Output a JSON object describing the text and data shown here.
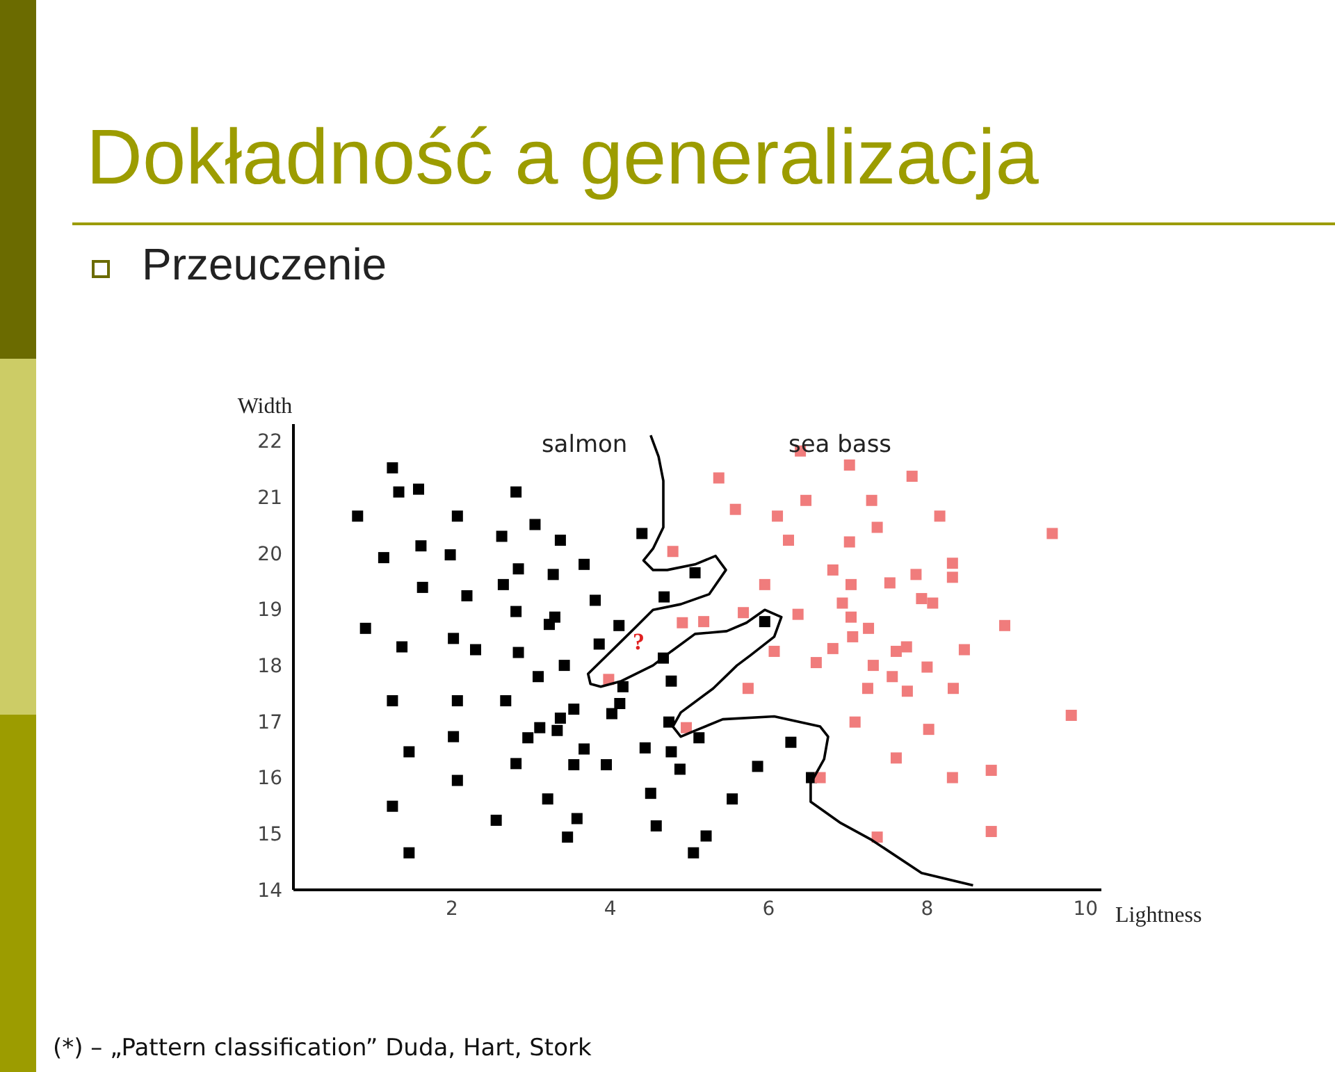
{
  "chart_data": {
    "type": "scatter",
    "title": "Dokładność a generalizacja",
    "subtitle": "Przeuczenie",
    "xlabel": "Lightness",
    "ylabel": "Width",
    "xlim": [
      0,
      10.2
    ],
    "ylim": [
      14,
      22.3
    ],
    "xticks": [
      2,
      4,
      6,
      8,
      10
    ],
    "yticks": [
      14,
      15,
      16,
      17,
      18,
      19,
      20,
      21,
      22
    ],
    "marker": "square",
    "series": [
      {
        "name": "salmon",
        "color": "#000000",
        "x": [
          1.25,
          1.33,
          1.58,
          2.81,
          0.81,
          2.07,
          3.05,
          2.63,
          3.37,
          4.4,
          1.61,
          1.14,
          1.98,
          2.84,
          3.28,
          3.67,
          5.07,
          1.63,
          2.19,
          2.65,
          2.81,
          3.81,
          3.3,
          3.23,
          4.11,
          4.68,
          0.91,
          2.02,
          1.37,
          2.3,
          2.84,
          3.42,
          3.09,
          3.86,
          4.67,
          4.16,
          4.77,
          5.95,
          4.12,
          4.02,
          1.25,
          2.07,
          2.68,
          3.54,
          3.37,
          3.33,
          3.11,
          2.96,
          4.74,
          1.46,
          2.02,
          2.81,
          3.54,
          3.95,
          3.67,
          4.44,
          4.77,
          4.88,
          5.12,
          6.28,
          5.86,
          6.54,
          5.54,
          2.07,
          1.25,
          3.21,
          2.56,
          3.58,
          4.51,
          4.58,
          3.46,
          1.46,
          5.21,
          5.05
        ],
        "values": [
          21.52,
          21.09,
          21.14,
          21.09,
          20.66,
          20.66,
          20.51,
          20.3,
          20.23,
          20.35,
          20.13,
          19.92,
          19.97,
          19.72,
          19.62,
          19.8,
          19.65,
          19.39,
          19.24,
          19.44,
          18.96,
          19.16,
          18.86,
          18.73,
          18.71,
          19.22,
          18.66,
          18.48,
          18.33,
          18.28,
          18.23,
          18.0,
          17.8,
          18.38,
          18.13,
          17.62,
          17.72,
          18.78,
          17.32,
          17.14,
          17.37,
          17.37,
          17.37,
          17.22,
          17.06,
          16.84,
          16.89,
          16.71,
          16.99,
          16.46,
          16.73,
          16.25,
          16.23,
          16.23,
          16.51,
          16.53,
          16.46,
          16.15,
          16.71,
          16.63,
          16.2,
          16.0,
          15.62,
          15.95,
          15.49,
          15.62,
          15.24,
          15.27,
          15.72,
          15.14,
          14.94,
          14.66,
          14.96,
          14.66
        ]
      },
      {
        "name": "sea bass",
        "color": "#f07c7c",
        "x": [
          6.4,
          5.37,
          7.02,
          7.81,
          5.58,
          6.11,
          6.47,
          7.3,
          8.16,
          6.25,
          7.02,
          7.37,
          9.58,
          4.79,
          6.81,
          5.95,
          7.04,
          7.53,
          7.86,
          8.32,
          8.32,
          5.68,
          6.37,
          6.93,
          7.04,
          7.93,
          8.07,
          7.26,
          5.18,
          4.91,
          6.07,
          6.81,
          7.61,
          7.74,
          8.47,
          8.98,
          7.06,
          6.6,
          7.32,
          8.0,
          7.56,
          5.74,
          7.25,
          7.75,
          8.33,
          3.98,
          4.96,
          7.09,
          8.02,
          9.82,
          7.61,
          6.65,
          8.32,
          8.81,
          7.37,
          8.81
        ],
        "values": [
          21.82,
          21.34,
          21.57,
          21.37,
          20.78,
          20.66,
          20.94,
          20.94,
          20.66,
          20.23,
          20.2,
          20.46,
          20.35,
          20.03,
          19.7,
          19.44,
          19.44,
          19.47,
          19.62,
          19.82,
          19.57,
          18.94,
          18.91,
          19.11,
          18.86,
          19.19,
          19.11,
          18.66,
          18.78,
          18.76,
          18.25,
          18.3,
          18.25,
          18.33,
          18.28,
          18.71,
          18.51,
          18.05,
          18.0,
          17.97,
          17.8,
          17.59,
          17.59,
          17.54,
          17.59,
          17.75,
          16.89,
          16.99,
          16.86,
          17.11,
          16.35,
          16.0,
          16.0,
          16.13,
          14.94,
          15.04
        ]
      },
      {
        "type": "line",
        "marker": "none",
        "color": "#000000",
        "x": [
          4.51,
          4.61,
          4.67,
          4.67,
          4.54,
          4.42,
          4.54,
          4.72,
          5.07,
          5.33,
          5.46,
          5.25,
          4.89,
          4.54,
          4.32,
          4.14,
          3.96,
          3.72,
          3.75,
          3.88,
          4.14,
          4.54,
          4.77,
          5.07,
          5.47,
          5.72,
          5.95,
          6.16,
          6.07,
          5.77,
          5.6,
          5.3,
          4.89,
          4.79,
          4.89,
          5.11,
          5.42,
          6.07,
          6.65,
          6.75,
          6.7,
          6.53,
          6.53,
          6.91,
          7.3,
          7.93,
          8.58
        ],
        "values": [
          22.1,
          21.72,
          21.29,
          20.46,
          20.08,
          19.87,
          19.7,
          19.7,
          19.8,
          19.95,
          19.7,
          19.27,
          19.09,
          18.99,
          18.68,
          18.43,
          18.18,
          17.85,
          17.67,
          17.62,
          17.72,
          18.0,
          18.25,
          18.56,
          18.61,
          18.76,
          18.99,
          18.86,
          18.51,
          18.18,
          18.0,
          17.59,
          17.16,
          16.91,
          16.73,
          16.86,
          17.04,
          17.09,
          16.91,
          16.73,
          16.33,
          15.9,
          15.57,
          15.19,
          14.89,
          14.3,
          14.08
        ]
      }
    ],
    "annotations": [
      "?",
      "(*) – „Pattern classification” Duda, Hart, Stork"
    ]
  }
}
